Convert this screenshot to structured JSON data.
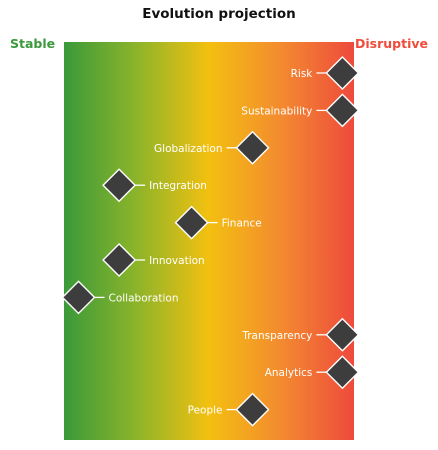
{
  "title": "Evolution projection",
  "scale": {
    "left_label": "Stable",
    "right_label": "Disruptive",
    "left_color": "#3a9a3c",
    "right_color": "#ef4c3c",
    "gradient_colors": [
      "#3a9a3a",
      "#8cb42a",
      "#f3c010",
      "#f38a30",
      "#ee4a3c"
    ]
  },
  "marker_color": "#3d3d3d",
  "items": [
    {
      "label": "Risk",
      "position": 0.96,
      "label_side": "left"
    },
    {
      "label": "Sustainability",
      "position": 0.96,
      "label_side": "left"
    },
    {
      "label": "Globalization",
      "position": 0.65,
      "label_side": "left"
    },
    {
      "label": "Integration",
      "position": 0.19,
      "label_side": "right"
    },
    {
      "label": "Finance",
      "position": 0.44,
      "label_side": "right"
    },
    {
      "label": "Innovation",
      "position": 0.19,
      "label_side": "right"
    },
    {
      "label": "Collaboration",
      "position": 0.05,
      "label_side": "right"
    },
    {
      "label": "Transparency",
      "position": 0.96,
      "label_side": "left"
    },
    {
      "label": "Analytics",
      "position": 0.96,
      "label_side": "left"
    },
    {
      "label": "People",
      "position": 0.65,
      "label_side": "left"
    }
  ]
}
